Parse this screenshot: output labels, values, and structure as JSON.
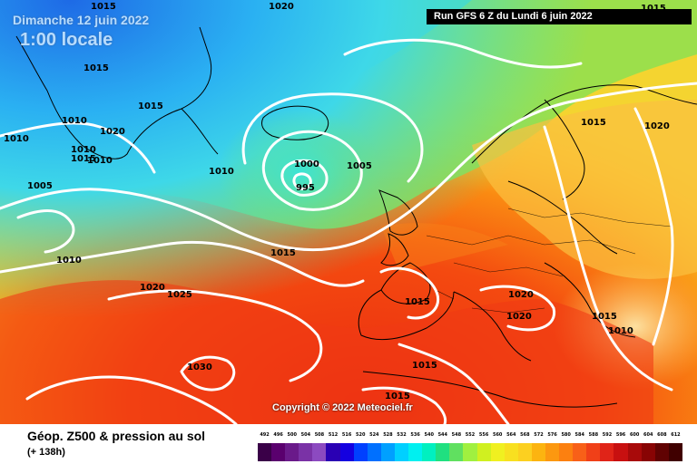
{
  "header": {
    "date": "Dimanche 12 juin 2022",
    "time": "1:00 locale",
    "run": "Run GFS 6 Z du Lundi 6 juin 2022"
  },
  "copyright": "Copyright © 2022 Meteociel.fr",
  "footer": {
    "title": "Géop. Z500 & pression au sol",
    "subtitle": "(+ 138h)"
  },
  "isobar_labels": [
    "1015",
    "1020",
    "1015",
    "1010",
    "1015",
    "1010",
    "1020",
    "1010",
    "1015",
    "1010",
    "1000",
    "995",
    "1005",
    "1005",
    "1010",
    "1015",
    "1010",
    "1020",
    "1025",
    "1030",
    "1015",
    "1015",
    "1015",
    "1020",
    "1020",
    "1015",
    "1010",
    "1020",
    "1015",
    "1015"
  ],
  "scale": {
    "labels": [
      "492",
      "496",
      "500",
      "504",
      "508",
      "512",
      "516",
      "520",
      "524",
      "528",
      "532",
      "536",
      "540",
      "544",
      "548",
      "552",
      "556",
      "560",
      "564",
      "568",
      "572",
      "576",
      "580",
      "584",
      "588",
      "592",
      "596",
      "600",
      "604",
      "608",
      "612"
    ],
    "colors": [
      "#3a0048",
      "#5a006e",
      "#6a1a8a",
      "#7a32a6",
      "#8c4ac0",
      "#2a00b4",
      "#1400e0",
      "#0040ff",
      "#0070ff",
      "#00a0ff",
      "#00d0ff",
      "#00f0f0",
      "#00f0c0",
      "#20e080",
      "#60e060",
      "#a0f040",
      "#d0f020",
      "#f0f020",
      "#f8e020",
      "#fcd020",
      "#fcb410",
      "#fc9810",
      "#fc8010",
      "#f86018",
      "#f04018",
      "#e02418",
      "#c81010",
      "#a80a0a",
      "#880404",
      "#600202",
      "#400000"
    ]
  }
}
